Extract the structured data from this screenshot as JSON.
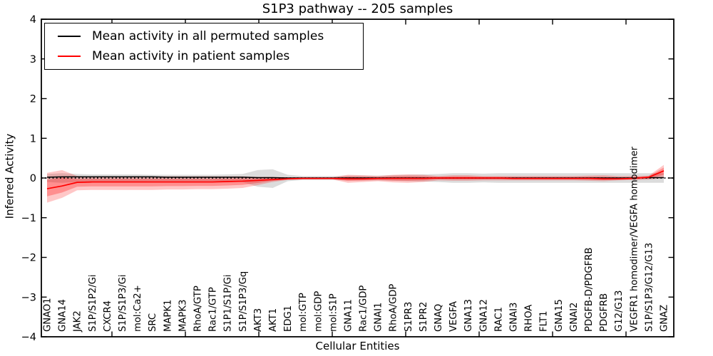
{
  "title": "S1P3 pathway -- 205 samples",
  "legend": [
    {
      "label": "Mean activity in all permuted samples",
      "color": "#000000"
    },
    {
      "label": "Mean activity in patient samples",
      "color": "#ff0000"
    }
  ],
  "colors": {
    "permuted_line": "#000000",
    "patient_line": "#ff0000",
    "permuted_band": "rgba(128,128,128,0.28)",
    "patient_band": "rgba(255,0,0,0.22)",
    "axis": "#000000"
  },
  "chart_data": {
    "type": "line",
    "title": "S1P3 pathway -- 205 samples",
    "xlabel": "Cellular Entities",
    "ylabel": "Inferred Activity",
    "ylim": [
      -4,
      4
    ],
    "ytick_labels": [
      "4",
      "3",
      "2",
      "1",
      "0",
      "−1",
      "−2",
      "−3",
      "−4"
    ],
    "ytick_values": [
      4,
      3,
      2,
      1,
      0,
      -1,
      -2,
      -3,
      -4
    ],
    "reference_line": 0,
    "legend_position": "upper left",
    "grid": false,
    "categories": [
      "GNAO1",
      "GNA14",
      "JAK2",
      "S1P/S1P2/Gi",
      "CXCR4",
      "S1P/S1P3/Gi",
      "mol:Ca2+",
      "SRC",
      "MAPK1",
      "MAPK3",
      "RhoA/GTP",
      "Rac1/GTP",
      "S1P1/S1P/Gi",
      "S1P/S1P3/Gq",
      "AKT3",
      "AKT1",
      "EDG1",
      "mol:GTP",
      "mol:GDP",
      "mol:S1P",
      "GNA11",
      "Rac1/GDP",
      "GNAI1",
      "RhoA/GDP",
      "S1PR3",
      "S1PR2",
      "GNAQ",
      "VEGFA",
      "GNA13",
      "GNA12",
      "RAC1",
      "GNAI3",
      "RHOA",
      "FLT1",
      "GNA15",
      "GNAI2",
      "PDGFB-D/PDGFRB",
      "PDGFRB",
      "G12/G13",
      "VEGFR1 homodimer/VEGFA homodimer",
      "S1P/S1P3/G12/G13",
      "GNAZ"
    ],
    "series": [
      {
        "name": "Mean activity in all permuted samples",
        "color": "#000000",
        "values": [
          0.02,
          0.03,
          0.03,
          0.03,
          0.03,
          0.03,
          0.03,
          0.03,
          0.02,
          0.02,
          0.02,
          0.02,
          0.02,
          0.02,
          0.01,
          0.01,
          0,
          0,
          0,
          0,
          0,
          0,
          0,
          0,
          0,
          0,
          0,
          0,
          0,
          0,
          0,
          0,
          0,
          0,
          0,
          0,
          0,
          0,
          0,
          0,
          0.01,
          0.01
        ],
        "band_upper": [
          0.1,
          0.12,
          0.1,
          0.09,
          0.09,
          0.09,
          0.09,
          0.08,
          0.08,
          0.08,
          0.08,
          0.08,
          0.09,
          0.1,
          0.2,
          0.22,
          0.08,
          0.05,
          0.05,
          0.05,
          0.06,
          0.06,
          0.06,
          0.07,
          0.08,
          0.09,
          0.1,
          0.12,
          0.12,
          0.11,
          0.12,
          0.12,
          0.12,
          0.12,
          0.12,
          0.12,
          0.12,
          0.12,
          0.12,
          0.12,
          0.12,
          0.12
        ],
        "band_lower": [
          -0.1,
          -0.12,
          -0.1,
          -0.09,
          -0.09,
          -0.09,
          -0.09,
          -0.08,
          -0.08,
          -0.08,
          -0.08,
          -0.08,
          -0.09,
          -0.1,
          -0.22,
          -0.25,
          -0.08,
          -0.05,
          -0.05,
          -0.05,
          -0.06,
          -0.06,
          -0.06,
          -0.07,
          -0.08,
          -0.09,
          -0.1,
          -0.12,
          -0.12,
          -0.11,
          -0.12,
          -0.12,
          -0.12,
          -0.12,
          -0.12,
          -0.12,
          -0.12,
          -0.12,
          -0.12,
          -0.12,
          -0.12,
          -0.12
        ]
      },
      {
        "name": "Mean activity in patient samples",
        "color": "#ff0000",
        "values": [
          -0.27,
          -0.2,
          -0.11,
          -0.1,
          -0.1,
          -0.1,
          -0.1,
          -0.1,
          -0.1,
          -0.1,
          -0.1,
          -0.1,
          -0.09,
          -0.08,
          -0.06,
          -0.04,
          -0.02,
          -0.01,
          -0.01,
          -0.01,
          -0.02,
          -0.02,
          -0.01,
          -0.01,
          -0.01,
          -0.01,
          0,
          0,
          0,
          0,
          0,
          -0.01,
          -0.01,
          -0.01,
          -0.01,
          -0.01,
          -0.01,
          -0.02,
          -0.02,
          -0.01,
          0.02,
          0.18
        ],
        "band_upper": [
          0.13,
          0.2,
          0.05,
          0.04,
          0.04,
          0.04,
          0.04,
          0.04,
          0.04,
          0.04,
          0.04,
          0.04,
          0.04,
          0.04,
          0.03,
          0.03,
          0.02,
          0.02,
          0.02,
          0.02,
          0.08,
          0.07,
          0.05,
          0.08,
          0.09,
          0.08,
          0.05,
          0.07,
          0.07,
          0.05,
          0.05,
          0.05,
          0.05,
          0.05,
          0.05,
          0.05,
          0.06,
          0.07,
          0.05,
          0.05,
          0.06,
          0.33
        ],
        "band_lower": [
          -0.62,
          -0.5,
          -0.31,
          -0.3,
          -0.3,
          -0.3,
          -0.3,
          -0.3,
          -0.29,
          -0.29,
          -0.28,
          -0.28,
          -0.27,
          -0.25,
          -0.18,
          -0.1,
          -0.05,
          -0.04,
          -0.04,
          -0.04,
          -0.12,
          -0.1,
          -0.08,
          -0.11,
          -0.12,
          -0.1,
          -0.06,
          -0.07,
          -0.07,
          -0.06,
          -0.06,
          -0.06,
          -0.06,
          -0.06,
          -0.06,
          -0.06,
          -0.07,
          -0.08,
          -0.06,
          -0.05,
          -0.04,
          0.0
        ]
      }
    ]
  }
}
